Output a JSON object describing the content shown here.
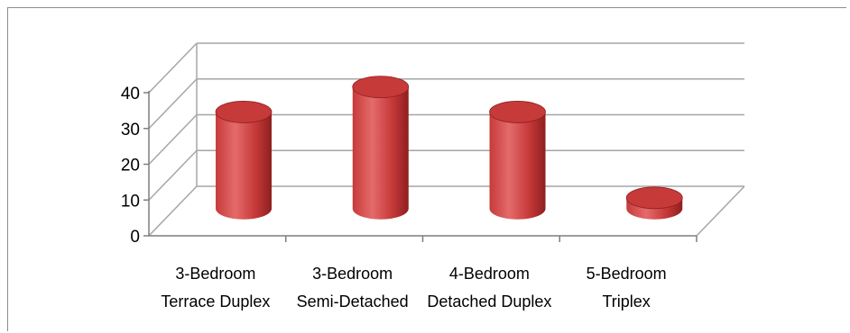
{
  "chart_data": {
    "type": "bar",
    "style": "3d-cylinder",
    "title": "",
    "xlabel": "",
    "ylabel": "",
    "categories": [
      [
        "3-Bedroom",
        "Terrace Duplex"
      ],
      [
        "3-Bedroom",
        "Semi-Detached"
      ],
      [
        "4-Bedroom",
        "Detached Duplex"
      ],
      [
        "5-Bedroom",
        "Triplex"
      ]
    ],
    "values": [
      27,
      34,
      27,
      3
    ],
    "ylim": [
      0,
      40
    ],
    "yticks": [
      "0",
      "10",
      "20",
      "30",
      "40"
    ],
    "grid": true,
    "legend": "none",
    "colors": {
      "bar_light": "#e46b6b",
      "bar_mid": "#c73a3a",
      "bar_dark": "#8f1f1f",
      "grid": "#a6a6a6",
      "axis": "#7f7f7f"
    }
  }
}
